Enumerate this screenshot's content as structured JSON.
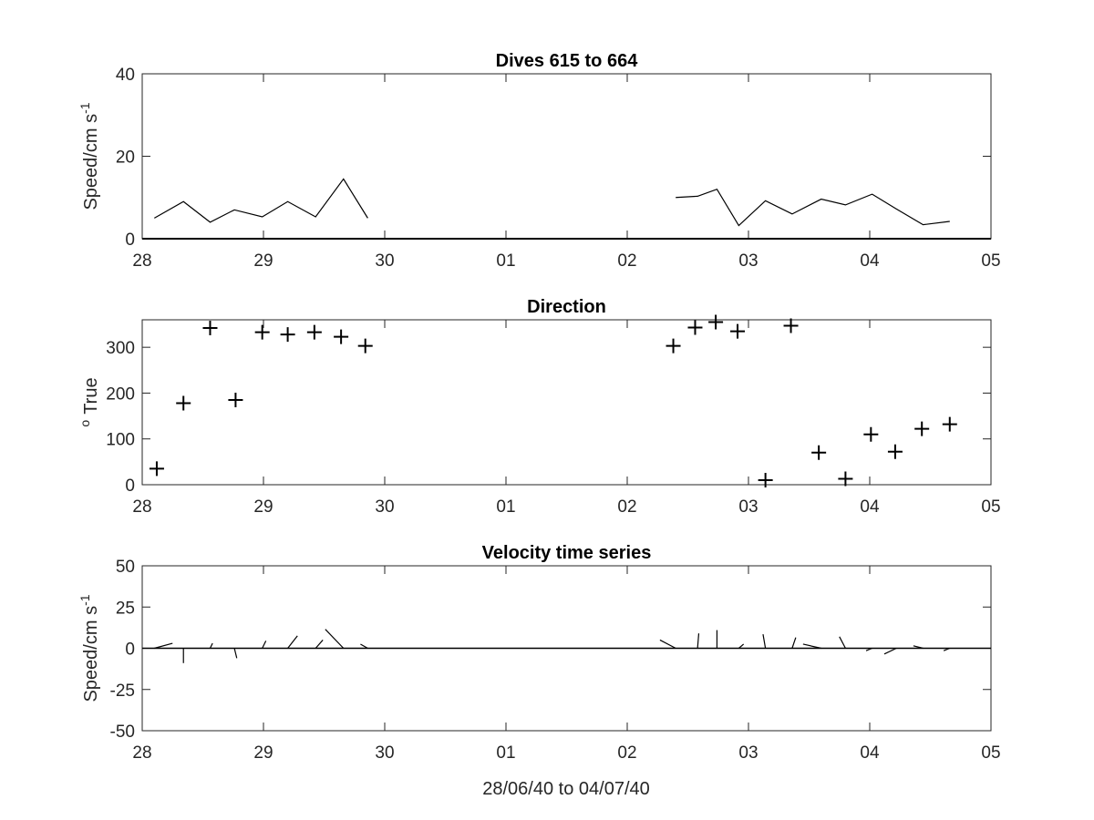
{
  "figure_xlabel": "28/06/40 to 04/07/40",
  "chart_data": [
    {
      "type": "line",
      "title": "Dives 615 to 664",
      "ylabel_main": "Speed/cm s",
      "ylabel_sup": "-1",
      "xlim": [
        0,
        7
      ],
      "ylim": [
        0,
        40
      ],
      "xticks": [
        0,
        1,
        2,
        3,
        4,
        5,
        6,
        7
      ],
      "xtick_labels": [
        "28",
        "29",
        "30",
        "01",
        "02",
        "03",
        "04",
        "05"
      ],
      "yticks": [
        0,
        20,
        40
      ],
      "ytick_labels": [
        "0",
        "20",
        "40"
      ],
      "series": [
        {
          "segments": [
            {
              "x": [
                0.1,
                0.34,
                0.56,
                0.76,
                0.99,
                1.2,
                1.43,
                1.66,
                1.86
              ],
              "y": [
                5,
                9,
                4,
                7,
                5.3,
                9,
                5.3,
                14.5,
                5
              ]
            },
            {
              "x": [
                4.4,
                4.58,
                4.74,
                4.92,
                5.14,
                5.36,
                5.6,
                5.8,
                6.02,
                6.22,
                6.44,
                6.66
              ],
              "y": [
                10,
                10.3,
                12,
                3.2,
                9.2,
                6,
                9.6,
                8.2,
                10.8,
                7.2,
                3.4,
                4.2
              ]
            }
          ]
        }
      ]
    },
    {
      "type": "scatter",
      "title": "Direction",
      "ylabel_main": "True",
      "ylabel_sup": "o",
      "xlim": [
        0,
        7
      ],
      "ylim": [
        0,
        360
      ],
      "xticks": [
        0,
        1,
        2,
        3,
        4,
        5,
        6,
        7
      ],
      "xtick_labels": [
        "28",
        "29",
        "30",
        "01",
        "02",
        "03",
        "04",
        "05"
      ],
      "yticks": [
        0,
        100,
        200,
        300
      ],
      "ytick_labels": [
        "0",
        "100",
        "200",
        "300"
      ],
      "marker": "+",
      "x": [
        0.12,
        0.34,
        0.56,
        0.77,
        0.99,
        1.2,
        1.42,
        1.64,
        1.84,
        4.38,
        4.56,
        4.73,
        4.91,
        5.14,
        5.35,
        5.58,
        5.8,
        6.01,
        6.21,
        6.43,
        6.66
      ],
      "y": [
        35,
        178,
        342,
        185,
        333,
        328,
        333,
        323,
        303,
        303,
        343,
        355,
        335,
        10,
        347,
        70,
        13,
        110,
        72,
        122,
        132
      ]
    },
    {
      "type": "line",
      "subtype": "stick",
      "title": "Velocity time series",
      "ylabel_main": "Speed/cm s",
      "ylabel_sup": "-1",
      "xlim": [
        0,
        7
      ],
      "ylim": [
        -50,
        50
      ],
      "xticks": [
        0,
        1,
        2,
        3,
        4,
        5,
        6,
        7
      ],
      "xtick_labels": [
        "28",
        "29",
        "30",
        "01",
        "02",
        "03",
        "04",
        "05"
      ],
      "yticks": [
        -50,
        -25,
        0,
        25,
        50
      ],
      "ytick_labels": [
        "-50",
        "-25",
        "0",
        "25",
        "50"
      ],
      "sticks": {
        "x": [
          0.1,
          0.34,
          0.56,
          0.76,
          0.99,
          1.2,
          1.43,
          1.66,
          1.86,
          4.4,
          4.58,
          4.74,
          4.92,
          5.14,
          5.36,
          5.6,
          5.8,
          6.02,
          6.22,
          6.44,
          6.66
        ],
        "u": [
          0.15,
          0,
          0.02,
          0.02,
          0.03,
          0.08,
          0.06,
          -0.15,
          -0.06,
          -0.13,
          0.01,
          0,
          0.04,
          -0.02,
          0.03,
          -0.15,
          -0.05,
          -0.05,
          -0.1,
          -0.08,
          -0.05
        ],
        "v": [
          3,
          -9,
          3,
          -6,
          4.5,
          7.5,
          5,
          11.5,
          2.5,
          5,
          9,
          11,
          2.5,
          8.5,
          6.5,
          2.5,
          7,
          -1.5,
          -3.5,
          1.5,
          -1.5
        ]
      }
    }
  ]
}
